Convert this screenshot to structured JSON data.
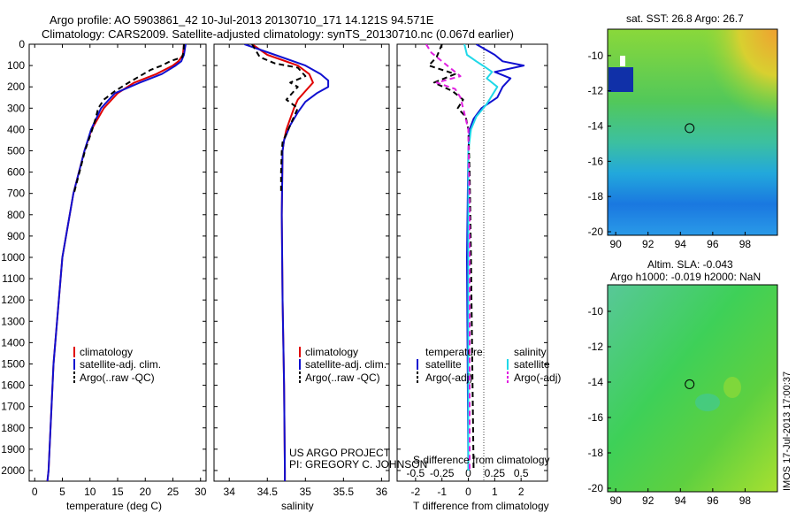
{
  "title_line1": "Argo profile: AO 5903861_42 10-Jul-2013 20130710_171 14.121S 94.571E",
  "title_line2": "Climatology: CARS2009. Satellite-adjusted climatology: synTS_20130710.nc (0.067d earlier)",
  "colors": {
    "climatology": "#e00000",
    "satellite": "#1010d0",
    "argo": "#000000",
    "sat_cyan": "#20d8e8",
    "argo_magenta": "#e020e0"
  },
  "chart_data": [
    {
      "type": "line",
      "id": "temperature",
      "xlabel": "temperature (deg C)",
      "ylabel": "",
      "xlim": [
        -1,
        31
      ],
      "ylim": [
        2050,
        0
      ],
      "xticks": [
        "0",
        "5",
        "10",
        "15",
        "20",
        "25",
        "30"
      ],
      "yticks": [
        "0",
        "100",
        "200",
        "300",
        "400",
        "500",
        "600",
        "700",
        "800",
        "900",
        "1000",
        "1100",
        "1200",
        "1300",
        "1400",
        "1500",
        "1600",
        "1700",
        "1800",
        "1900",
        "2000"
      ],
      "legend": [
        "climatology",
        "satellite-adj. clim.",
        "Argo(..raw -QC)"
      ],
      "series": [
        {
          "name": "climatology",
          "color": "#e00000",
          "dash": false,
          "depth": [
            0,
            50,
            80,
            100,
            140,
            180,
            230,
            300,
            400,
            500,
            700,
            1000,
            1500,
            2000,
            2050
          ],
          "values": [
            27,
            26.8,
            26,
            25,
            22,
            18,
            15,
            12.5,
            10.3,
            9,
            7,
            5,
            3.4,
            2.5,
            2.3
          ]
        },
        {
          "name": "satellite-adj. clim.",
          "color": "#1010d0",
          "dash": false,
          "depth": [
            0,
            50,
            80,
            100,
            140,
            180,
            230,
            300,
            400,
            500,
            700,
            1000,
            1500,
            2000,
            2050
          ],
          "values": [
            27.3,
            27,
            26.5,
            25.5,
            23,
            19,
            14.5,
            12,
            10.2,
            9,
            7,
            5,
            3.4,
            2.5,
            2.3
          ]
        },
        {
          "name": "Argo(..raw -QC)",
          "color": "#000000",
          "dash": true,
          "depth": [
            0,
            40,
            60,
            80,
            100,
            120,
            150,
            180,
            220,
            260,
            300,
            350,
            400,
            500,
            700
          ],
          "values": [
            27,
            26.9,
            26.7,
            24.5,
            23,
            21,
            19,
            17,
            14.5,
            12.5,
            11.5,
            11,
            10.4,
            9.1,
            7.1
          ]
        }
      ]
    },
    {
      "type": "line",
      "id": "salinity",
      "xlabel": "salinity",
      "xlim": [
        33.8,
        36.1
      ],
      "ylim": [
        2050,
        0
      ],
      "xticks": [
        "34",
        "34.5",
        "35",
        "35.5",
        "36"
      ],
      "legend": [
        "climatology",
        "satellite-adj. clim.",
        "Argo(..raw -QC)"
      ],
      "annotation": [
        "US ARGO PROJECT",
        "PI: GREGORY C. JOHNSON"
      ],
      "series": [
        {
          "name": "climatology",
          "color": "#e00000",
          "dash": false,
          "depth": [
            0,
            50,
            100,
            140,
            180,
            220,
            260,
            300,
            350,
            400,
            450,
            500,
            800,
            1200,
            1600,
            2000,
            2050
          ],
          "values": [
            34.3,
            34.5,
            34.9,
            35.05,
            35.1,
            35,
            34.9,
            34.85,
            34.8,
            34.75,
            34.72,
            34.7,
            34.69,
            34.7,
            34.72,
            34.73,
            34.73
          ]
        },
        {
          "name": "satellite-adj. clim.",
          "color": "#1010d0",
          "dash": false,
          "depth": [
            0,
            50,
            100,
            140,
            170,
            200,
            230,
            270,
            320,
            380,
            450,
            500,
            800,
            1200,
            1600,
            2000,
            2050
          ],
          "values": [
            34.2,
            34.6,
            35,
            35.2,
            35.3,
            35.3,
            35.15,
            35,
            34.9,
            34.8,
            34.72,
            34.7,
            34.69,
            34.7,
            34.72,
            34.73,
            34.73
          ]
        },
        {
          "name": "Argo(..raw -QC)",
          "color": "#000000",
          "dash": true,
          "depth": [
            0,
            60,
            90,
            110,
            150,
            180,
            200,
            220,
            260,
            300,
            340,
            380,
            420,
            460,
            500,
            600,
            700
          ],
          "values": [
            34.3,
            34.4,
            34.6,
            34.9,
            35,
            34.8,
            34.9,
            34.85,
            34.75,
            34.9,
            34.85,
            34.8,
            34.75,
            34.7,
            34.69,
            34.68,
            34.68
          ]
        }
      ]
    },
    {
      "type": "line",
      "id": "difference",
      "xlabel": "T difference from climatology",
      "xlabel2": "S difference from climatology",
      "xlim": [
        -2.7,
        3
      ],
      "ylim": [
        2050,
        0
      ],
      "xticks": [
        "-2",
        "-1",
        "0",
        "1",
        "2"
      ],
      "xticks2": [
        "-0.5",
        "-0.25",
        "0",
        "0.25",
        "0.5"
      ],
      "legend_headers": [
        "temperature",
        "salinity"
      ],
      "legend": [
        "satellite",
        "Argo(-adj)",
        "satellite",
        "Argo(-adj)"
      ],
      "series": [
        {
          "name": "temperature satellite",
          "color": "#1010d0",
          "dash": false,
          "depth": [
            0,
            50,
            80,
            100,
            130,
            160,
            200,
            250,
            300,
            350,
            400,
            500,
            1000,
            2000
          ],
          "values": [
            0.3,
            1,
            1.3,
            2.1,
            1,
            1.6,
            1.3,
            1.1,
            0.5,
            0.2,
            0.05,
            0,
            -0.05,
            0
          ]
        },
        {
          "name": "salinity satellite",
          "color": "#20d8e8",
          "dash": false,
          "depth": [
            0,
            50,
            80,
            100,
            130,
            160,
            200,
            240,
            280,
            340,
            400,
            500,
            1000,
            2000
          ],
          "values": [
            -0.15,
            -0.05,
            0.3,
            0.55,
            0.9,
            0.7,
            1.1,
            0.9,
            0.7,
            0.3,
            0.1,
            0,
            0,
            0
          ]
        },
        {
          "name": "temperature Argo(-adj)",
          "color": "#000000",
          "dash": true,
          "depth": [
            0,
            60,
            100,
            140,
            180,
            220,
            260,
            300,
            340,
            400,
            600,
            1000,
            1500,
            2000
          ],
          "values": [
            -1,
            -1.2,
            -1.5,
            -0.5,
            -1.3,
            -0.6,
            -0.2,
            -0.4,
            -0.1,
            0,
            0.05,
            0.1,
            0.15,
            0.2
          ]
        },
        {
          "name": "salinity Argo(-adj)",
          "color": "#e020e0",
          "dash": true,
          "depth": [
            0,
            40,
            80,
            110,
            150,
            180,
            210,
            250,
            300,
            400,
            800,
            1500,
            2000
          ],
          "values": [
            -1.6,
            -1.4,
            -1,
            -0.7,
            -0.3,
            -1.2,
            -0.5,
            -0.3,
            -0.2,
            0,
            0.05,
            0.05,
            0.05
          ]
        }
      ]
    },
    {
      "type": "heatmap",
      "id": "sst_map",
      "title": "sat. SST: 26.8 Argo: 26.7",
      "xticks": [
        "90",
        "92",
        "94",
        "96",
        "98"
      ],
      "yticks": [
        "-10",
        "-12",
        "-14",
        "-16",
        "-18",
        "-20"
      ],
      "xlim": [
        89.5,
        100
      ],
      "ylim": [
        -20.2,
        -8.5
      ],
      "marker": [
        94.57,
        -14.12
      ]
    },
    {
      "type": "heatmap",
      "id": "sla_map",
      "title": "Altim. SLA: -0.043",
      "subtitle": "Argo h1000: -0.019 h2000: NaN",
      "xticks": [
        "90",
        "92",
        "94",
        "96",
        "98"
      ],
      "yticks": [
        "-10",
        "-12",
        "-14",
        "-16",
        "-18",
        "-20"
      ],
      "xlim": [
        89.5,
        100
      ],
      "ylim": [
        -20.2,
        -8.5
      ],
      "marker": [
        94.57,
        -14.12
      ]
    }
  ],
  "footer_stamp": "IMOS 17-Jul-2013 17:00:37"
}
